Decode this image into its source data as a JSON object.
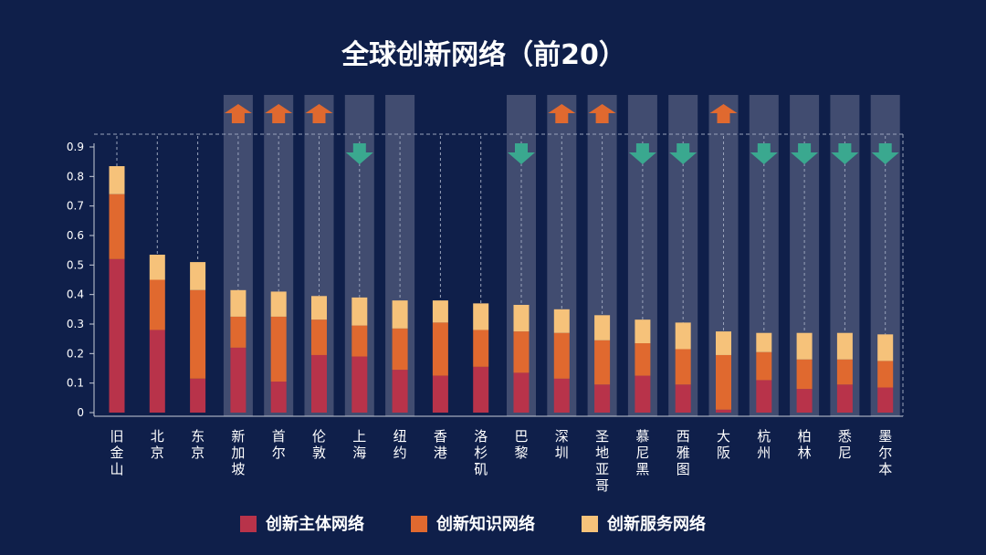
{
  "chart_data": {
    "type": "bar",
    "stacked": true,
    "title": "全球创新网络（前20）",
    "categories": [
      "旧金山",
      "北京",
      "东京",
      "新加坡",
      "首尔",
      "伦敦",
      "上海",
      "纽约",
      "香港",
      "洛杉矶",
      "巴黎",
      "深圳",
      "圣地亚哥",
      "慕尼黑",
      "西雅图",
      "大阪",
      "杭州",
      "柏林",
      "悉尼",
      "墨尔本"
    ],
    "series": [
      {
        "name": "创新主体网络",
        "color": "#b8334a",
        "values": [
          0.52,
          0.28,
          0.115,
          0.22,
          0.105,
          0.195,
          0.19,
          0.145,
          0.125,
          0.155,
          0.135,
          0.115,
          0.095,
          0.125,
          0.095,
          0.01,
          0.11,
          0.08,
          0.095,
          0.085
        ]
      },
      {
        "name": "创新知识网络",
        "color": "#e0692f",
        "values": [
          0.22,
          0.17,
          0.3,
          0.105,
          0.22,
          0.12,
          0.105,
          0.14,
          0.18,
          0.125,
          0.14,
          0.155,
          0.15,
          0.11,
          0.12,
          0.185,
          0.095,
          0.1,
          0.085,
          0.09
        ]
      },
      {
        "name": "创新服务网络",
        "color": "#f6c27a",
        "values": [
          0.095,
          0.085,
          0.095,
          0.09,
          0.085,
          0.08,
          0.095,
          0.095,
          0.075,
          0.09,
          0.09,
          0.08,
          0.085,
          0.08,
          0.09,
          0.08,
          0.065,
          0.09,
          0.09,
          0.09
        ]
      }
    ],
    "ylim": [
      0,
      0.9
    ],
    "yticks": [
      "0",
      "0.1",
      "0.2",
      "0.3",
      "0.4",
      "0.5",
      "0.6",
      "0.7",
      "0.8",
      "0.9"
    ],
    "legend": "bottom",
    "highlighted": [
      false,
      false,
      false,
      true,
      true,
      true,
      true,
      true,
      false,
      false,
      true,
      true,
      true,
      true,
      true,
      true,
      true,
      true,
      true,
      true
    ],
    "trend": [
      "",
      "",
      "",
      "up",
      "up",
      "up",
      "down",
      "",
      "",
      "",
      "down",
      "up",
      "up",
      "down",
      "down",
      "up",
      "down",
      "down",
      "down",
      "down"
    ],
    "colors": {
      "background": "#0f1f4a",
      "highlight_band": "#4a5577",
      "up_arrow": "#e0692f",
      "down_arrow": "#3aa88f",
      "axis": "#c7ccd8",
      "text": "#ffffff"
    }
  }
}
